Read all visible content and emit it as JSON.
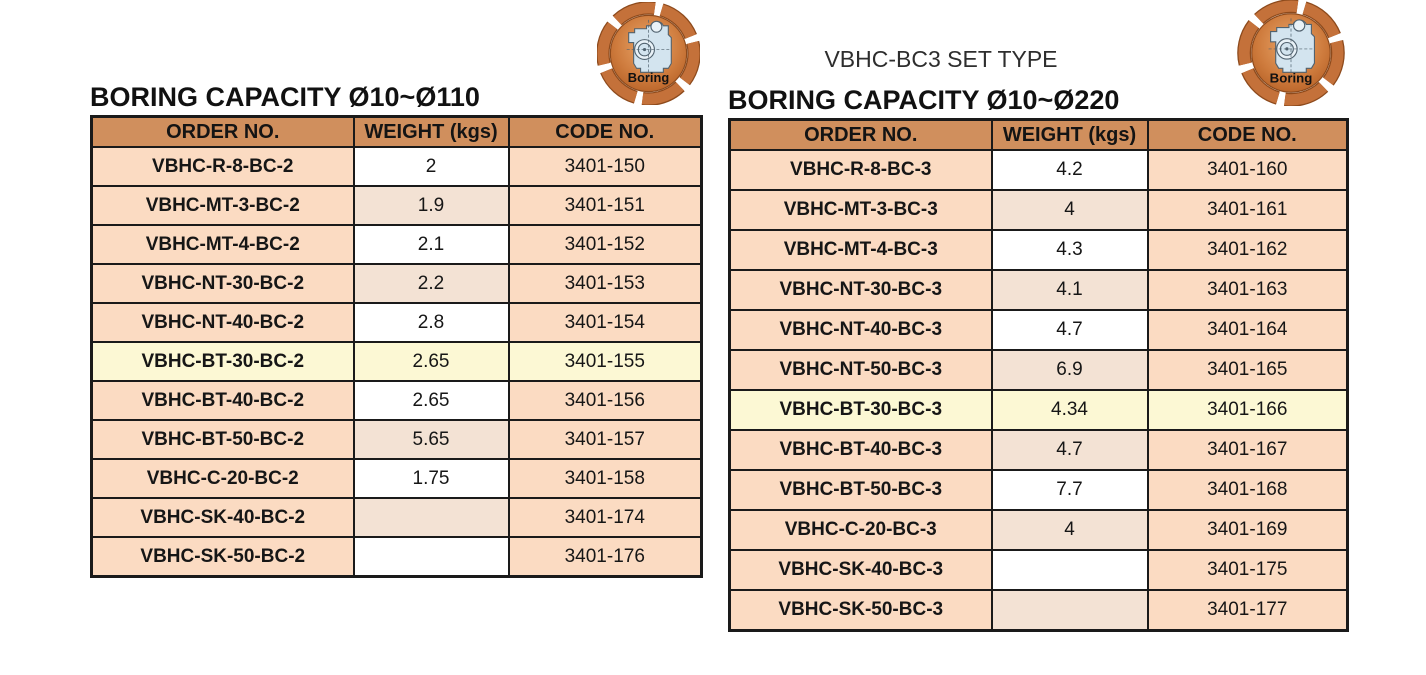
{
  "colors": {
    "header_bg": "#d08f5d",
    "row_peach": "#fbdbc2",
    "row_beige": "#f3e2d4",
    "row_white": "#ffffff",
    "row_highlight": "#fcf8d4",
    "border": "#1a1a1a",
    "badge_ring": "#c4713a",
    "badge_ring_dark": "#8d4a1c",
    "badge_drawing": "#d3e4ef"
  },
  "icons": {
    "boring_label": "Boring"
  },
  "left_table": {
    "title": "BORING CAPACITY Ø10~Ø110",
    "headers": [
      "ORDER NO.",
      "WEIGHT (kgs)",
      "CODE NO."
    ],
    "rows": [
      {
        "order": "VBHC-R-8-BC-2",
        "weight": "2",
        "code": "3401-150",
        "highlight": false
      },
      {
        "order": "VBHC-MT-3-BC-2",
        "weight": "1.9",
        "code": "3401-151",
        "highlight": false
      },
      {
        "order": "VBHC-MT-4-BC-2",
        "weight": "2.1",
        "code": "3401-152",
        "highlight": false
      },
      {
        "order": "VBHC-NT-30-BC-2",
        "weight": "2.2",
        "code": "3401-153",
        "highlight": false
      },
      {
        "order": "VBHC-NT-40-BC-2",
        "weight": "2.8",
        "code": "3401-154",
        "highlight": false
      },
      {
        "order": "VBHC-BT-30-BC-2",
        "weight": "2.65",
        "code": "3401-155",
        "highlight": true
      },
      {
        "order": "VBHC-BT-40-BC-2",
        "weight": "2.65",
        "code": "3401-156",
        "highlight": false
      },
      {
        "order": "VBHC-BT-50-BC-2",
        "weight": "5.65",
        "code": "3401-157",
        "highlight": false
      },
      {
        "order": "VBHC-C-20-BC-2",
        "weight": "1.75",
        "code": "3401-158",
        "highlight": false
      },
      {
        "order": "VBHC-SK-40-BC-2",
        "weight": "",
        "code": "3401-174",
        "highlight": false
      },
      {
        "order": "VBHC-SK-50-BC-2",
        "weight": "",
        "code": "3401-176",
        "highlight": false
      }
    ]
  },
  "right_table": {
    "set_type_label": "VBHC-BC3 SET TYPE",
    "title": "BORING CAPACITY Ø10~Ø220",
    "headers": [
      "ORDER NO.",
      "WEIGHT (kgs)",
      "CODE NO."
    ],
    "rows": [
      {
        "order": "VBHC-R-8-BC-3",
        "weight": "4.2",
        "code": "3401-160",
        "highlight": false
      },
      {
        "order": "VBHC-MT-3-BC-3",
        "weight": "4",
        "code": "3401-161",
        "highlight": false
      },
      {
        "order": "VBHC-MT-4-BC-3",
        "weight": "4.3",
        "code": "3401-162",
        "highlight": false
      },
      {
        "order": "VBHC-NT-30-BC-3",
        "weight": "4.1",
        "code": "3401-163",
        "highlight": false
      },
      {
        "order": "VBHC-NT-40-BC-3",
        "weight": "4.7",
        "code": "3401-164",
        "highlight": false
      },
      {
        "order": "VBHC-NT-50-BC-3",
        "weight": "6.9",
        "code": "3401-165",
        "highlight": false
      },
      {
        "order": "VBHC-BT-30-BC-3",
        "weight": "4.34",
        "code": "3401-166",
        "highlight": true
      },
      {
        "order": "VBHC-BT-40-BC-3",
        "weight": "4.7",
        "code": "3401-167",
        "highlight": false
      },
      {
        "order": "VBHC-BT-50-BC-3",
        "weight": "7.7",
        "code": "3401-168",
        "highlight": false
      },
      {
        "order": "VBHC-C-20-BC-3",
        "weight": "4",
        "code": "3401-169",
        "highlight": false
      },
      {
        "order": "VBHC-SK-40-BC-3",
        "weight": "",
        "code": "3401-175",
        "highlight": false
      },
      {
        "order": "VBHC-SK-50-BC-3",
        "weight": "",
        "code": "3401-177",
        "highlight": false
      }
    ]
  }
}
